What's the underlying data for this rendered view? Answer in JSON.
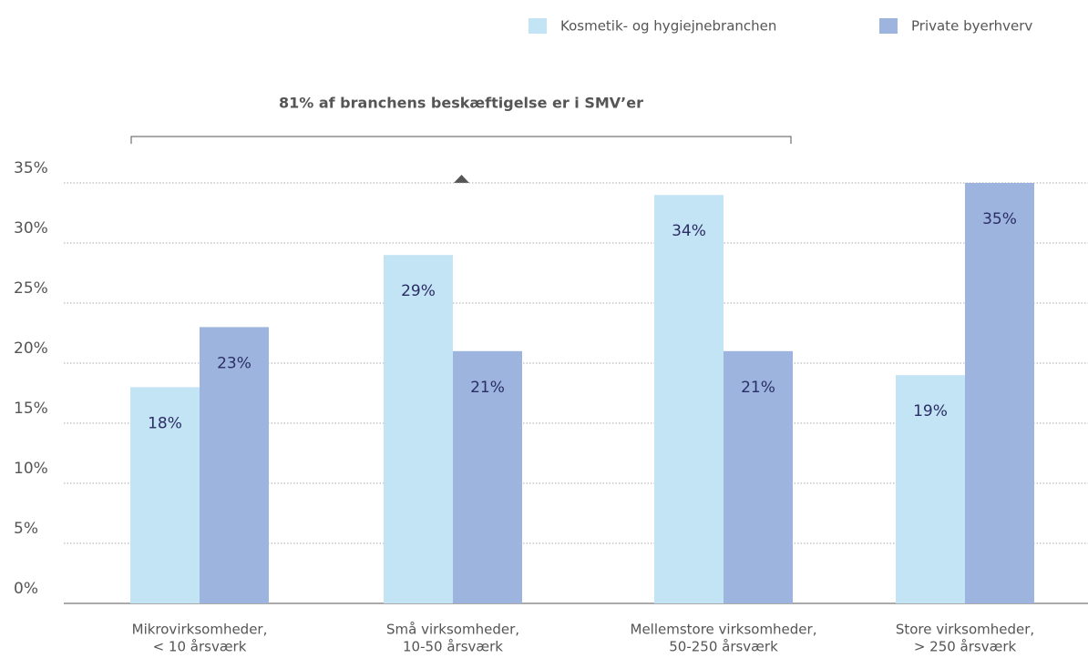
{
  "chart_data": {
    "type": "bar",
    "annotation": "81% af branchens beskæftigelse er i SMV’er",
    "categories": [
      [
        "Mikrovirksomheder,",
        "< 10 årsværk"
      ],
      [
        "Små virksomheder,",
        "10-50 årsværk"
      ],
      [
        "Mellemstore virksomheder,",
        "50-250 årsværk"
      ],
      [
        "Store virksomheder,",
        "> 250 årsværk"
      ]
    ],
    "series": [
      {
        "name": "Kosmetik- og hygiejnebranchen",
        "color": "#c3e4f4",
        "values": [
          18,
          29,
          34,
          19
        ],
        "value_labels": [
          "18%",
          "29%",
          "34%",
          "19%"
        ]
      },
      {
        "name": "Private byerhverv",
        "color": "#9db5de",
        "values": [
          23,
          21,
          21,
          35
        ],
        "value_labels": [
          "23%",
          "21%",
          "21%",
          "35%"
        ]
      }
    ],
    "ylim": [
      0,
      35
    ],
    "yticks": [
      {
        "value": 0,
        "label": "0%"
      },
      {
        "value": 5,
        "label": "5%"
      },
      {
        "value": 10,
        "label": "10%"
      },
      {
        "value": 15,
        "label": "15%"
      },
      {
        "value": 20,
        "label": "20%"
      },
      {
        "value": 25,
        "label": "25%"
      },
      {
        "value": 30,
        "label": "30%"
      },
      {
        "value": 35,
        "label": "35%"
      }
    ],
    "grid": true,
    "legend": "top-right"
  }
}
